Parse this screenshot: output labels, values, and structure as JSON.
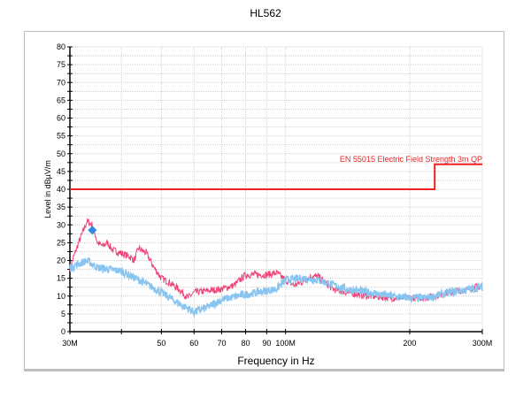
{
  "chart_data": {
    "type": "line",
    "title": "HL562",
    "xlabel": "Frequency in Hz",
    "ylabel": "Level in dBµV/m",
    "xscale": "log",
    "xlim": [
      30,
      300
    ],
    "ylim": [
      0,
      80
    ],
    "grid": true,
    "x_tick_labels": [
      {
        "v": 30,
        "label": "30M"
      },
      {
        "v": 40,
        "label": ""
      },
      {
        "v": 50,
        "label": "50"
      },
      {
        "v": 60,
        "label": "60"
      },
      {
        "v": 70,
        "label": "70"
      },
      {
        "v": 80,
        "label": "80"
      },
      {
        "v": 90,
        "label": "90"
      },
      {
        "v": 100,
        "label": "100M"
      },
      {
        "v": 200,
        "label": "200"
      },
      {
        "v": 300,
        "label": "300M"
      }
    ],
    "y_ticks": [
      0,
      5,
      10,
      15,
      20,
      25,
      30,
      35,
      40,
      45,
      50,
      55,
      60,
      65,
      70,
      75,
      80
    ],
    "limit_line": {
      "name": "EN 55015 Electric Field Strength 3m QP",
      "color": "#ee2222",
      "points": [
        [
          30,
          40
        ],
        [
          230,
          40
        ],
        [
          230,
          47
        ],
        [
          300,
          47
        ]
      ]
    },
    "series": [
      {
        "color": "#ee4477",
        "points": [
          [
            30,
            18
          ],
          [
            31.5,
            25
          ],
          [
            33,
            31
          ],
          [
            34,
            30
          ],
          [
            35,
            25
          ],
          [
            36,
            24
          ],
          [
            37,
            25
          ],
          [
            38,
            23
          ],
          [
            40,
            22
          ],
          [
            42,
            21
          ],
          [
            43,
            20
          ],
          [
            44,
            23.5
          ],
          [
            46,
            22
          ],
          [
            48,
            18
          ],
          [
            50,
            15
          ],
          [
            52,
            14
          ],
          [
            55,
            12
          ],
          [
            58,
            9.5
          ],
          [
            60,
            11
          ],
          [
            65,
            11.5
          ],
          [
            70,
            12
          ],
          [
            75,
            13
          ],
          [
            80,
            16
          ],
          [
            85,
            16
          ],
          [
            90,
            16
          ],
          [
            95,
            16.5
          ],
          [
            100,
            14.5
          ],
          [
            105,
            13
          ],
          [
            110,
            14
          ],
          [
            115,
            15.5
          ],
          [
            120,
            15.5
          ],
          [
            130,
            12
          ],
          [
            140,
            11
          ],
          [
            160,
            10
          ],
          [
            180,
            9.5
          ],
          [
            200,
            9.5
          ],
          [
            220,
            9.5
          ],
          [
            250,
            11
          ],
          [
            280,
            12
          ],
          [
            300,
            13
          ]
        ]
      },
      {
        "color": "#88c4f0",
        "points": [
          [
            30,
            18
          ],
          [
            33,
            20
          ],
          [
            35,
            18
          ],
          [
            40,
            17
          ],
          [
            45,
            14
          ],
          [
            50,
            11
          ],
          [
            55,
            8
          ],
          [
            60,
            5.5
          ],
          [
            65,
            7
          ],
          [
            70,
            9
          ],
          [
            80,
            10.5
          ],
          [
            90,
            11.5
          ],
          [
            95,
            12
          ],
          [
            100,
            14.5
          ],
          [
            110,
            15
          ],
          [
            120,
            14.5
          ],
          [
            140,
            12
          ],
          [
            160,
            11
          ],
          [
            180,
            10
          ],
          [
            200,
            9.5
          ],
          [
            220,
            9.5
          ],
          [
            250,
            11
          ],
          [
            300,
            12.5
          ]
        ]
      }
    ],
    "markers": [
      {
        "x": 34,
        "y": 28.5,
        "shape": "diamond",
        "color": "#3388dd"
      }
    ]
  }
}
